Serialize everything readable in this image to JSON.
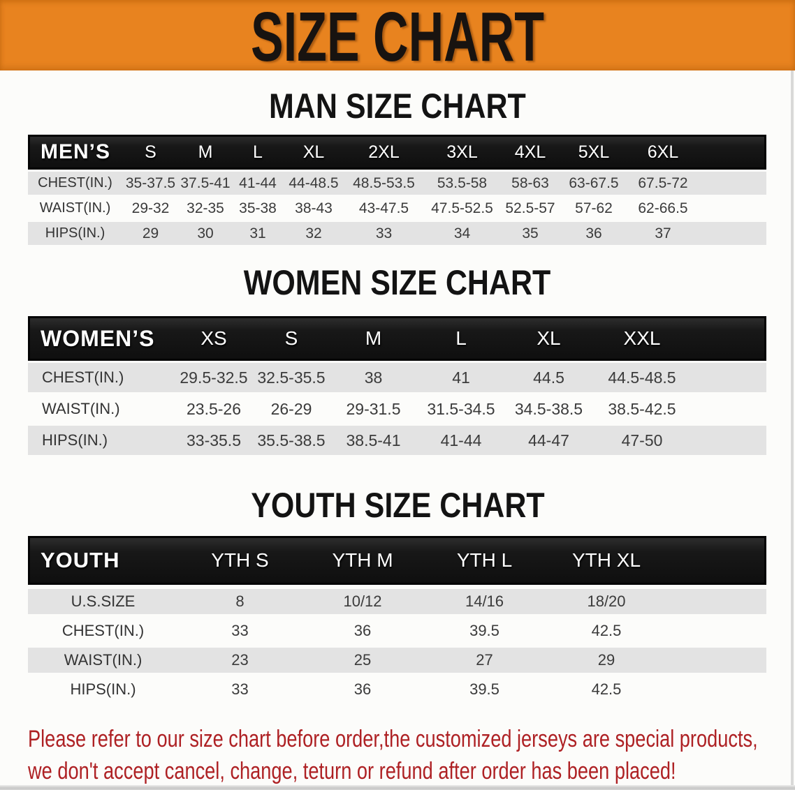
{
  "banner": {
    "title": "SIZE CHART"
  },
  "colors": {
    "banner_bg": "#E8831F",
    "header_bar": "#161616",
    "row_shade": "#E3E3E3",
    "notice_red": "#AE2124",
    "table_text": "#3B3B3B"
  },
  "sections": [
    {
      "heading": "MAN SIZE CHART",
      "table": {
        "label": "MEN’S",
        "columns": [
          "S",
          "M",
          "L",
          "XL",
          "2XL",
          "3XL",
          "4XL",
          "5XL",
          "6XL"
        ],
        "rows": [
          {
            "label": "CHEST(IN.)",
            "values": [
              "35-37.5",
              "37.5-41",
              "41-44",
              "44-48.5",
              "48.5-53.5",
              "53.5-58",
              "58-63",
              "63-67.5",
              "67.5-72"
            ]
          },
          {
            "label": "WAIST(IN.)",
            "values": [
              "29-32",
              "32-35",
              "35-38",
              "38-43",
              "43-47.5",
              "47.5-52.5",
              "52.5-57",
              "57-62",
              "62-66.5"
            ]
          },
          {
            "label": "HIPS(IN.)",
            "values": [
              "29",
              "30",
              "31",
              "32",
              "33",
              "34",
              "35",
              "36",
              "37"
            ]
          }
        ]
      }
    },
    {
      "heading": "WOMEN SIZE CHART",
      "table": {
        "label": "WOMEN’S",
        "columns": [
          "XS",
          "S",
          "M",
          "L",
          "XL",
          "XXL"
        ],
        "rows": [
          {
            "label": "CHEST(IN.)",
            "values": [
              "29.5-32.5",
              "32.5-35.5",
              "38",
              "41",
              "44.5",
              "44.5-48.5"
            ]
          },
          {
            "label": "WAIST(IN.)",
            "values": [
              "23.5-26",
              "26-29",
              "29-31.5",
              "31.5-34.5",
              "34.5-38.5",
              "38.5-42.5"
            ]
          },
          {
            "label": "HIPS(IN.)",
            "values": [
              "33-35.5",
              "35.5-38.5",
              "38.5-41",
              "41-44",
              "44-47",
              "47-50"
            ]
          }
        ]
      }
    },
    {
      "heading": "YOUTH SIZE CHART",
      "table": {
        "label": "YOUTH",
        "columns": [
          "YTH S",
          "YTH M",
          "YTH L",
          "YTH XL"
        ],
        "rows": [
          {
            "label": "U.S.SIZE",
            "values": [
              "8",
              "10/12",
              "14/16",
              "18/20"
            ]
          },
          {
            "label": "CHEST(IN.)",
            "values": [
              "33",
              "36",
              "39.5",
              "42.5"
            ]
          },
          {
            "label": "WAIST(IN.)",
            "values": [
              "23",
              "25",
              "27",
              "29"
            ]
          },
          {
            "label": "HIPS(IN.)",
            "values": [
              "33",
              "36",
              "39.5",
              "42.5"
            ]
          }
        ]
      }
    }
  ],
  "footer": {
    "line1": "Please refer to our size chart before order,the customized jerseys are special products,",
    "line2": "we don't accept cancel, change, teturn or refund after order has been placed!"
  }
}
